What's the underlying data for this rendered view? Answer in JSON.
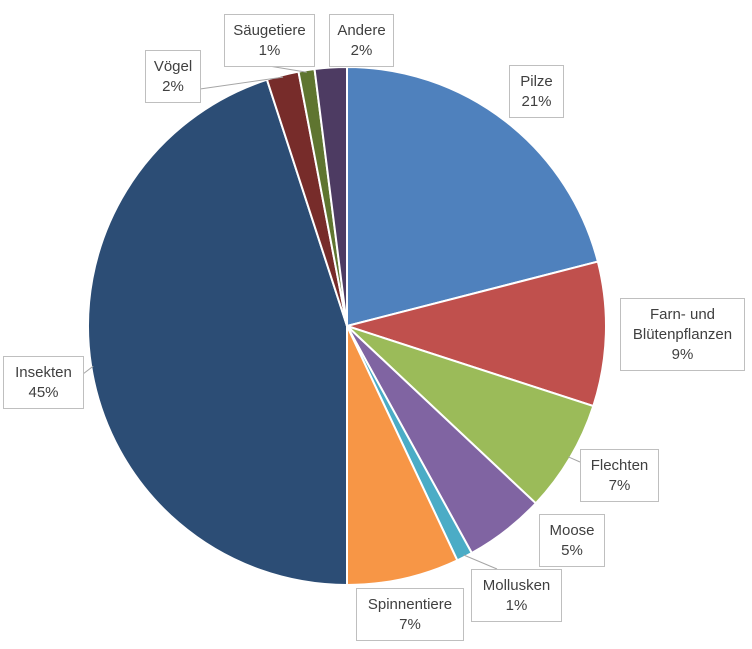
{
  "chart_data": {
    "type": "pie",
    "start_angle_deg": 0,
    "direction": "clockwise",
    "slices": [
      {
        "name": "Pilze",
        "value": 21,
        "label": "21%",
        "color": "#4F81BD"
      },
      {
        "name": "Farn- und Blütenpflanzen",
        "name_lines": [
          "Farn- und",
          "Blütenpflanzen"
        ],
        "value": 9,
        "label": "9%",
        "color": "#C0504D"
      },
      {
        "name": "Flechten",
        "value": 7,
        "label": "7%",
        "color": "#9BBB59"
      },
      {
        "name": "Moose",
        "value": 5,
        "label": "5%",
        "color": "#8064A2"
      },
      {
        "name": "Mollusken",
        "value": 1,
        "label": "1%",
        "color": "#4BACC6"
      },
      {
        "name": "Spinnentiere",
        "value": 7,
        "label": "7%",
        "color": "#F79646"
      },
      {
        "name": "Insekten",
        "value": 45,
        "label": "45%",
        "color": "#2C4D75"
      },
      {
        "name": "Vögel",
        "value": 2,
        "label": "2%",
        "color": "#772C2A"
      },
      {
        "name": "Säugetiere",
        "value": 1,
        "label": "1%",
        "color": "#5F7530"
      },
      {
        "name": "Andere",
        "value": 2,
        "label": "2%",
        "color": "#4D3B62"
      }
    ]
  }
}
